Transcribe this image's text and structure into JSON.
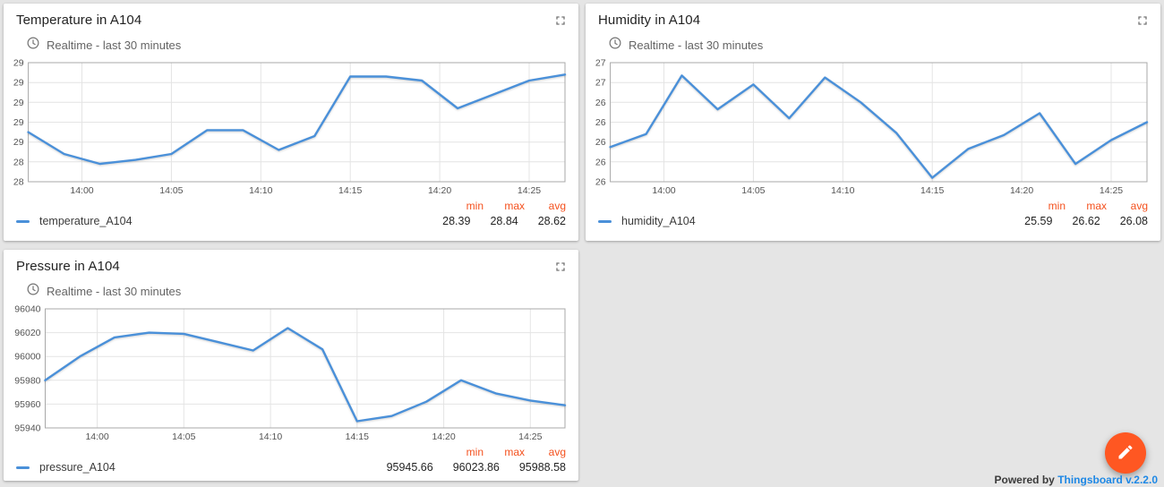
{
  "page": {
    "background_color": "#e5e5e5",
    "powered_by": {
      "prefix": "Powered by ",
      "link_text": "Thingsboard v.2.2.0"
    },
    "fab": {
      "color": "#ff5722",
      "icon": "pencil-icon"
    }
  },
  "widgets": [
    {
      "title": "Temperature in A104",
      "subtitle": "Realtime - last 30 minutes",
      "legend": {
        "series_label": "temperature_A104",
        "headers": [
          "min",
          "max",
          "avg"
        ],
        "values": [
          "28.39",
          "28.84",
          "28.62"
        ]
      },
      "chart_data": {
        "type": "line",
        "xlim": [
          "13:57",
          "14:27"
        ],
        "ylim": [
          28.3,
          28.9
        ],
        "x_ticks": [
          "14:00",
          "14:05",
          "14:10",
          "14:15",
          "14:20",
          "14:25"
        ],
        "y_tick_labels": [
          "29",
          "29",
          "29",
          "29",
          "29",
          "28",
          "28"
        ],
        "grid": true,
        "series": [
          {
            "name": "temperature_A104",
            "color": "#4a90d9",
            "points": [
              [
                "13:57",
                28.55
              ],
              [
                "13:59",
                28.44
              ],
              [
                "14:01",
                28.39
              ],
              [
                "14:03",
                28.41
              ],
              [
                "14:05",
                28.44
              ],
              [
                "14:07",
                28.56
              ],
              [
                "14:09",
                28.56
              ],
              [
                "14:11",
                28.46
              ],
              [
                "14:13",
                28.53
              ],
              [
                "14:15",
                28.83
              ],
              [
                "14:17",
                28.83
              ],
              [
                "14:19",
                28.81
              ],
              [
                "14:21",
                28.67
              ],
              [
                "14:23",
                28.74
              ],
              [
                "14:25",
                28.81
              ],
              [
                "14:27",
                28.84
              ]
            ]
          }
        ]
      }
    },
    {
      "title": "Humidity in A104",
      "subtitle": "Realtime - last 30 minutes",
      "legend": {
        "series_label": "humidity_A104",
        "headers": [
          "min",
          "max",
          "avg"
        ],
        "values": [
          "25.59",
          "26.62",
          "26.08"
        ]
      },
      "chart_data": {
        "type": "line",
        "xlim": [
          "13:57",
          "14:27"
        ],
        "ylim": [
          25.55,
          26.75
        ],
        "x_ticks": [
          "14:00",
          "14:05",
          "14:10",
          "14:15",
          "14:20",
          "14:25"
        ],
        "y_tick_labels": [
          "27",
          "27",
          "26",
          "26",
          "26",
          "26",
          "26"
        ],
        "grid": true,
        "series": [
          {
            "name": "humidity_A104",
            "color": "#4a90d9",
            "points": [
              [
                "13:57",
                25.9
              ],
              [
                "13:59",
                26.03
              ],
              [
                "14:01",
                26.62
              ],
              [
                "14:03",
                26.28
              ],
              [
                "14:05",
                26.53
              ],
              [
                "14:07",
                26.19
              ],
              [
                "14:09",
                26.6
              ],
              [
                "14:11",
                26.35
              ],
              [
                "14:13",
                26.04
              ],
              [
                "14:15",
                25.59
              ],
              [
                "14:17",
                25.88
              ],
              [
                "14:19",
                26.02
              ],
              [
                "14:21",
                26.24
              ],
              [
                "14:23",
                25.73
              ],
              [
                "14:25",
                25.97
              ],
              [
                "14:27",
                26.15
              ]
            ]
          }
        ]
      }
    },
    {
      "title": "Pressure in A104",
      "subtitle": "Realtime - last 30 minutes",
      "legend": {
        "series_label": "pressure_A104",
        "headers": [
          "min",
          "max",
          "avg"
        ],
        "values": [
          "95945.66",
          "96023.86",
          "95988.58"
        ]
      },
      "chart_data": {
        "type": "line",
        "xlim": [
          "13:57",
          "14:27"
        ],
        "ylim": [
          95940,
          96040
        ],
        "x_ticks": [
          "14:00",
          "14:05",
          "14:10",
          "14:15",
          "14:20",
          "14:25"
        ],
        "y_tick_labels": [
          "96040",
          "96020",
          "96000",
          "95980",
          "95960",
          "95940"
        ],
        "grid": true,
        "series": [
          {
            "name": "pressure_A104",
            "color": "#4a90d9",
            "points": [
              [
                "13:57",
                95980
              ],
              [
                "13:59",
                96000
              ],
              [
                "14:01",
                96016
              ],
              [
                "14:03",
                96020
              ],
              [
                "14:05",
                96019
              ],
              [
                "14:07",
                96012
              ],
              [
                "14:09",
                96005
              ],
              [
                "14:11",
                96023.86
              ],
              [
                "14:13",
                96006
              ],
              [
                "14:15",
                95945.66
              ],
              [
                "14:17",
                95950
              ],
              [
                "14:19",
                95962
              ],
              [
                "14:21",
                95980
              ],
              [
                "14:23",
                95969
              ],
              [
                "14:25",
                95963
              ],
              [
                "14:27",
                95959
              ]
            ]
          }
        ]
      }
    }
  ]
}
